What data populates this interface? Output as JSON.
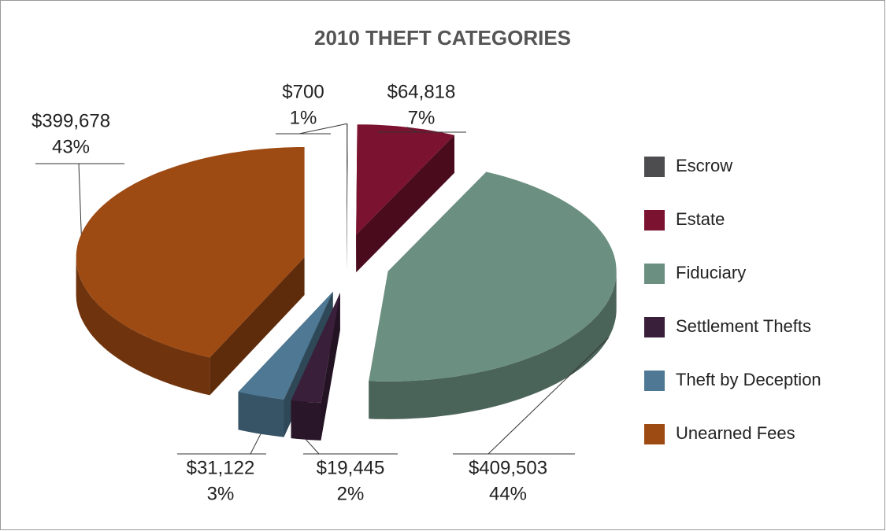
{
  "chart_data": {
    "type": "pie",
    "title": "2010 THEFT CATEGORIES",
    "categories": [
      "Escrow",
      "Estate",
      "Fiduciary",
      "Settlement Thefts",
      "Theft by Deception",
      "Unearned Fees"
    ],
    "values": [
      700,
      64818,
      409503,
      19445,
      31122,
      399678
    ],
    "value_labels": [
      "$700",
      "$64,818",
      "$409,503",
      "$19,445",
      "$31,122",
      "$399,678"
    ],
    "percents": [
      1,
      7,
      44,
      2,
      3,
      43
    ],
    "percent_labels": [
      "1%",
      "7%",
      "44%",
      "2%",
      "3%",
      "43%"
    ],
    "colors": [
      "#4d4d4f",
      "#7b1230",
      "#6b8f80",
      "#3a1f3a",
      "#4e7893",
      "#9e4a13"
    ],
    "legend": "right"
  }
}
